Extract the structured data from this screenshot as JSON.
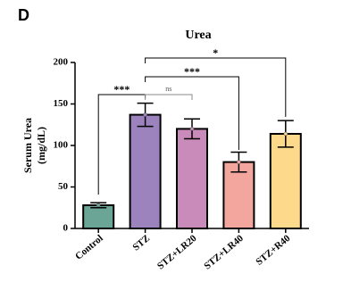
{
  "panel_label": "D",
  "chart_data": {
    "type": "bar",
    "title": "Urea",
    "ylabel": [
      "Serum Urea",
      "(mg/dL)"
    ],
    "categories": [
      "Control",
      "STZ",
      "STZ+LR20",
      "STZ+LR40",
      "STZ+R40"
    ],
    "values": [
      28,
      137,
      120,
      80,
      114
    ],
    "errors": [
      3,
      14,
      12,
      12,
      16
    ],
    "colors": [
      "#6aa595",
      "#9d83bd",
      "#c98bb9",
      "#f2a69e",
      "#fdd98c"
    ],
    "ylim": [
      0,
      200
    ],
    "yticks": [
      0,
      50,
      100,
      150,
      200
    ],
    "annotations": [
      "***",
      "ns",
      "***",
      "*"
    ]
  }
}
